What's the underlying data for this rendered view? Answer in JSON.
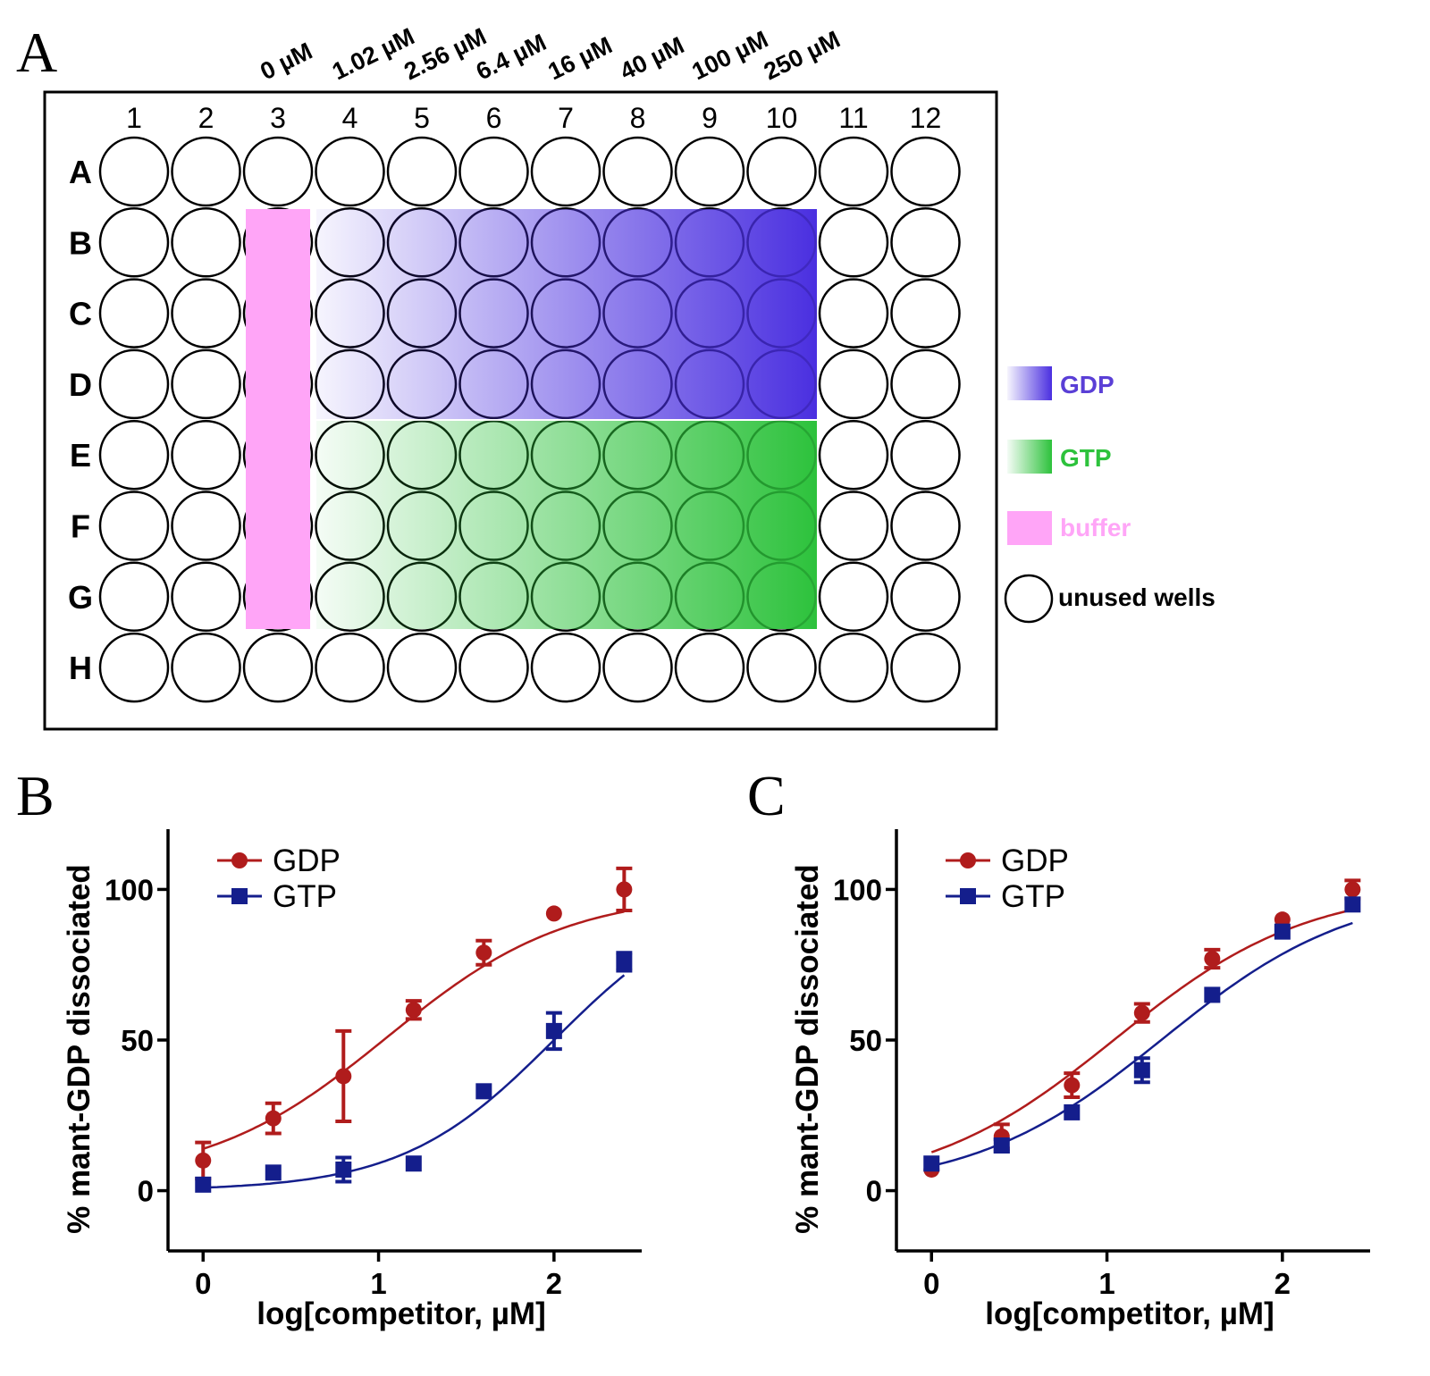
{
  "panel_a": {
    "label": "A",
    "columns": [
      "1",
      "2",
      "3",
      "4",
      "5",
      "6",
      "7",
      "8",
      "9",
      "10",
      "11",
      "12"
    ],
    "rows": [
      "A",
      "B",
      "C",
      "D",
      "E",
      "F",
      "G",
      "H"
    ],
    "concentrations": [
      "0 µM",
      "1.02 µM",
      "2.56 µM",
      "6.4 µM",
      "16 µM",
      "40 µM",
      "100 µM",
      "250 µM"
    ],
    "legend": [
      {
        "label": "GDP",
        "color": "#4a2fe0"
      },
      {
        "label": "GTP",
        "color": "#2dc23c"
      },
      {
        "label": "buffer",
        "color": "#ffa5f7"
      },
      {
        "label": "unused wells",
        "color": "#000000"
      }
    ]
  },
  "chart_data": [
    {
      "panel": "B",
      "type": "scatter",
      "xlabel": "log[competitor, µM]",
      "ylabel": "% mant-GDP dissociated",
      "xlim": [
        -0.2,
        2.5
      ],
      "ylim": [
        -20,
        120
      ],
      "xticks": [
        0,
        1,
        2
      ],
      "yticks": [
        0,
        50,
        100
      ],
      "legend_position": "top-left",
      "series": [
        {
          "name": "GDP",
          "color": "#b01c1c",
          "marker": "circle",
          "x": [
            0,
            0.4,
            0.8,
            1.2,
            1.6,
            2.0,
            2.4
          ],
          "y": [
            10,
            24,
            38,
            60,
            79,
            92,
            100
          ],
          "err": [
            6,
            5,
            15,
            3,
            4,
            1,
            7
          ],
          "fit_bottom": 3,
          "fit_top": 99,
          "fit_logec50": 1.05,
          "fit_slope": 0.85
        },
        {
          "name": "GTP",
          "color": "#141e8c",
          "marker": "square",
          "x": [
            0,
            0.4,
            0.8,
            1.2,
            1.6,
            2.0,
            2.4
          ],
          "y": [
            2,
            6,
            7,
            9,
            33,
            53,
            76
          ],
          "err": [
            1,
            1,
            4,
            1,
            1,
            6,
            3
          ],
          "fit_bottom": 0,
          "fit_top": 100,
          "fit_logec50": 2.0,
          "fit_slope": 1.0
        }
      ]
    },
    {
      "panel": "C",
      "type": "scatter",
      "xlabel": "log[competitor, µM]",
      "ylabel": "% mant-GDP dissociated",
      "xlim": [
        -0.2,
        2.5
      ],
      "ylim": [
        -20,
        120
      ],
      "xticks": [
        0,
        1,
        2
      ],
      "yticks": [
        0,
        50,
        100
      ],
      "legend_position": "top-left",
      "series": [
        {
          "name": "GDP",
          "color": "#b01c1c",
          "marker": "circle",
          "x": [
            0,
            0.4,
            0.8,
            1.2,
            1.6,
            2.0,
            2.4
          ],
          "y": [
            7,
            18,
            35,
            59,
            77,
            90,
            100
          ],
          "err": [
            1,
            4,
            4,
            3,
            3,
            1,
            3
          ],
          "fit_bottom": 0,
          "fit_top": 101,
          "fit_logec50": 1.05,
          "fit_slope": 0.8
        },
        {
          "name": "GTP",
          "color": "#141e8c",
          "marker": "square",
          "x": [
            0,
            0.4,
            0.8,
            1.2,
            1.6,
            2.0,
            2.4
          ],
          "y": [
            9,
            15,
            26,
            40,
            65,
            86,
            95
          ],
          "err": [
            1,
            2,
            1,
            4,
            1,
            1,
            1
          ],
          "fit_bottom": 0,
          "fit_top": 101,
          "fit_logec50": 1.32,
          "fit_slope": 0.8
        }
      ]
    }
  ]
}
